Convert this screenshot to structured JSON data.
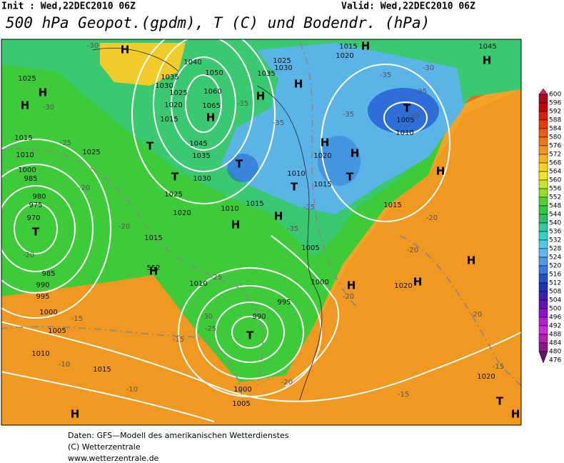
{
  "header": {
    "init": "Init : Wed,22DEC2010 06Z",
    "valid": "Valid: Wed,22DEC2010 06Z",
    "title": "500 hPa Geopot.(gpdm), T (C) und Bodendr. (hPa)"
  },
  "map": {
    "labels": [
      "H",
      "H",
      "H",
      "H",
      "H",
      "H",
      "H",
      "H",
      "T",
      "T",
      "T",
      "T",
      "H",
      "H",
      "T",
      "H",
      "T",
      "H",
      "H",
      "H",
      "H",
      "H",
      "T",
      "H",
      "T",
      "H",
      "T",
      "H",
      "1025",
      "1015",
      "1010",
      "1000",
      "985",
      "980",
      "975",
      "970",
      "985",
      "990",
      "995",
      "1000",
      "1005",
      "1010",
      "1015",
      "1025",
      "1035",
      "1030",
      "1025",
      "1020",
      "1015",
      "1040",
      "1050",
      "1060",
      "1065",
      "1045",
      "1035",
      "1030",
      "1025",
      "1020",
      "1015",
      "1010",
      "1015",
      "1010",
      "1015",
      "1020",
      "1035",
      "1025",
      "1030",
      "1015",
      "1020",
      "1045",
      "1005",
      "1010",
      "1015",
      "1005",
      "1010",
      "1000",
      "995",
      "990",
      "1000",
      "1005",
      "1020",
      "1020",
      "-30",
      "-30",
      "-25",
      "-20",
      "-20",
      "-20",
      "-35",
      "-35",
      "-35",
      "-35",
      "-30",
      "-25",
      "-30",
      "-35",
      "-35",
      "-25",
      "-30",
      "-25",
      "-15",
      "-20",
      "-15",
      "-10",
      "-15",
      "-10",
      "-20",
      "-20",
      "-20",
      "-15",
      "-20",
      "552"
    ]
  },
  "colorbar": {
    "labels": [
      600,
      596,
      592,
      588,
      584,
      580,
      576,
      572,
      568,
      564,
      560,
      556,
      552,
      548,
      544,
      540,
      536,
      532,
      528,
      524,
      520,
      516,
      512,
      508,
      504,
      500,
      496,
      492,
      488,
      484,
      480,
      476
    ],
    "colors": [
      "#d0206a",
      "#b0001a",
      "#c80000",
      "#dc1e00",
      "#e63c00",
      "#ec5a0a",
      "#f07814",
      "#f4961e",
      "#f8b41e",
      "#fad21e",
      "#f0e61e",
      "#c8e628",
      "#96dc28",
      "#50d232",
      "#32c83c",
      "#32be64",
      "#32c8a0",
      "#32d2c8",
      "#50c8e6",
      "#64b4f0",
      "#5096e6",
      "#3c78dc",
      "#2850c8",
      "#1e32b4",
      "#3c1eb4",
      "#6414b4",
      "#8c14c8",
      "#b41ed2",
      "#d228dc",
      "#b41eb4",
      "#8c148c",
      "#64146e"
    ]
  },
  "footer": {
    "lines": [
      "Daten: GFS—Modell des amerikanischen Wetterdienstes",
      "(C) Wetterzentrale",
      "www.wetterzentrale.de"
    ]
  }
}
